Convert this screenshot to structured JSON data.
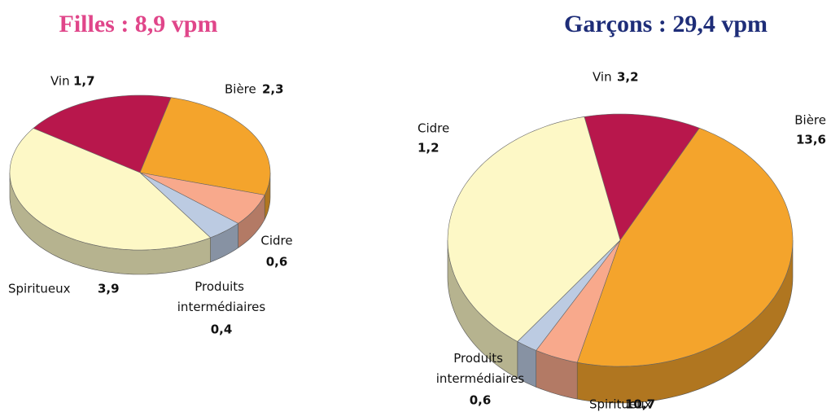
{
  "chart_data": [
    {
      "type": "pie3d",
      "title": "Filles : 8,9 vpm",
      "title_color": "#e0468a",
      "categories": [
        "Vin",
        "Bière",
        "Cidre",
        "Produits intermédiaires",
        "Spiritueux"
      ],
      "values": [
        1.7,
        2.3,
        0.6,
        0.4,
        3.9
      ],
      "value_labels": [
        "1,7",
        "2,3",
        "0,6",
        "0,4",
        "3,9"
      ],
      "colors": [
        "#b8174c",
        "#f4a42c",
        "#f8a98c",
        "#bccbe2",
        "#fdf8c6"
      ]
    },
    {
      "type": "pie3d",
      "title": "Garçons : 29,4 vpm",
      "title_color": "#1e2d78",
      "categories": [
        "Vin",
        "Bière",
        "Cidre",
        "Produits intermédiaires",
        "Spiritueux"
      ],
      "values": [
        3.2,
        13.6,
        1.2,
        0.6,
        10.7
      ],
      "value_labels": [
        "3,2",
        "13,6",
        "1,2",
        "0,6",
        "10,7"
      ],
      "colors": [
        "#b8174c",
        "#f4a42c",
        "#f8a98c",
        "#bccbe2",
        "#fdf8c6"
      ]
    }
  ]
}
